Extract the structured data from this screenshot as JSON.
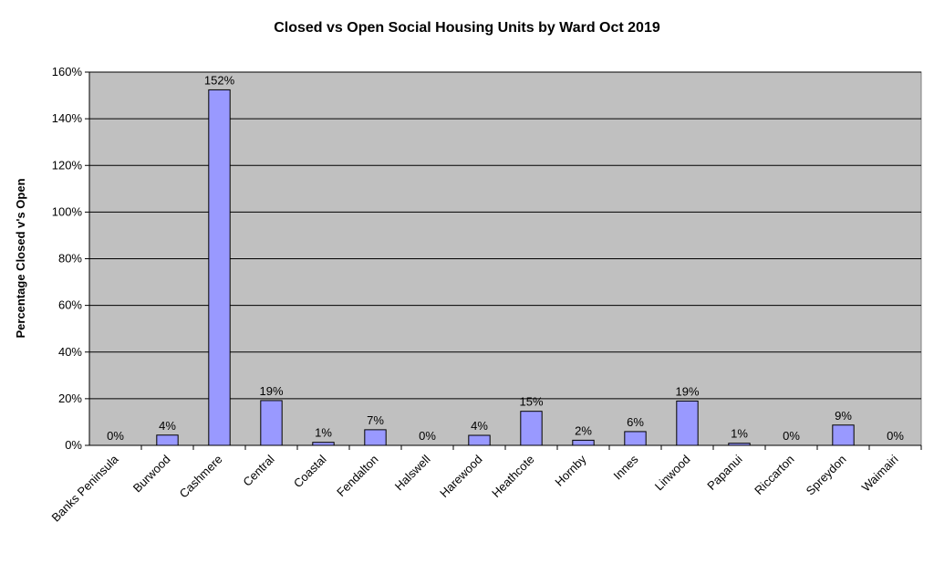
{
  "chart_data": {
    "type": "bar",
    "title": "Closed vs Open Social Housing Units by Ward Oct 2019",
    "xlabel": "",
    "ylabel": "Percentage Closed v's Open",
    "ylim": [
      0,
      160
    ],
    "y_ticks": [
      "0%",
      "20%",
      "40%",
      "60%",
      "80%",
      "100%",
      "120%",
      "140%",
      "160%"
    ],
    "grid": true,
    "legend": "none",
    "categories": [
      "Banks Peninsula",
      "Burwood",
      "Cashmere",
      "Central",
      "Coastal",
      "Fendalton",
      "Halswell",
      "Harewood",
      "Heathcote",
      "Hornby",
      "Innes",
      "Linwood",
      "Papanui",
      "Riccarton",
      "Spreydon",
      "Waimairi"
    ],
    "values": [
      0,
      4.4,
      152.4,
      19.2,
      1.3,
      6.7,
      0,
      4.3,
      14.6,
      2.2,
      5.9,
      19.0,
      0.9,
      0,
      8.7,
      0
    ],
    "data_labels": [
      "0%",
      "4%",
      "152%",
      "19%",
      "1%",
      "7%",
      "0%",
      "4%",
      "15%",
      "2%",
      "6%",
      "19%",
      "1%",
      "0%",
      "9%",
      "0%"
    ],
    "colors": {
      "plot_background": "#c0c0c0",
      "bar_fill": "#9999ff",
      "bar_stroke": "#000000",
      "gridline": "#000000"
    }
  }
}
